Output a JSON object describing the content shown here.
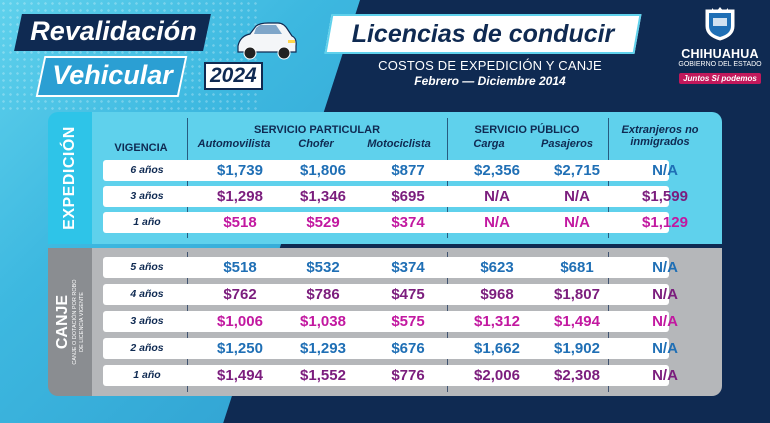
{
  "header": {
    "revalidacion": "Revalidación",
    "vehicular": "Vehicular",
    "year": "2024",
    "title": "Licencias de conducir",
    "subtitle": "COSTOS DE EXPEDICIÓN Y CANJE",
    "period": "Febrero — Diciembre 2014"
  },
  "logo": {
    "state": "CHIHUAHUA",
    "gobierno": "GOBIERNO DEL ESTADO",
    "slogan": "Juntos Sí podemos",
    "icon": "coat-of-arms-icon"
  },
  "colors": {
    "navy": "#0f2a52",
    "cyan": "#5fd1ec",
    "gray": "#b5b7ba",
    "blue_value": "#1f6fb5",
    "purple_value": "#7b1d7d",
    "pink_value": "#c218a0"
  },
  "table": {
    "groups": {
      "particular": "SERVICIO PARTICULAR",
      "publico": "SERVICIO PÚBLICO",
      "extranjeros": "Extranjeros no inmigrados"
    },
    "columns": {
      "vigencia": "VIGENCIA",
      "automovilista": "Automovilista",
      "chofer": "Chofer",
      "motociclista": "Motociclista",
      "carga": "Carga",
      "pasajeros": "Pasajeros"
    },
    "expedicion": {
      "label": "EXPEDICIÓN",
      "rows": [
        {
          "vigencia": "6 años",
          "auto": "$1,739",
          "chofer": "$1,806",
          "moto": "$877",
          "carga": "$2,356",
          "pasajeros": "$2,715",
          "ext": "N/A"
        },
        {
          "vigencia": "3 años",
          "auto": "$1,298",
          "chofer": "$1,346",
          "moto": "$695",
          "carga": "N/A",
          "pasajeros": "N/A",
          "ext": "$1,599"
        },
        {
          "vigencia": "1 año",
          "auto": "$518",
          "chofer": "$529",
          "moto": "$374",
          "carga": "N/A",
          "pasajeros": "N/A",
          "ext": "$1,129"
        }
      ]
    },
    "canje": {
      "label": "CANJE",
      "sublabel1": "CANJE O DOTACIÓN POR ROBO",
      "sublabel2": "DE LICENCIA VIGENTE",
      "rows": [
        {
          "vigencia": "5 años",
          "auto": "$518",
          "chofer": "$532",
          "moto": "$374",
          "carga": "$623",
          "pasajeros": "$681",
          "ext": "N/A"
        },
        {
          "vigencia": "4 años",
          "auto": "$762",
          "chofer": "$786",
          "moto": "$475",
          "carga": "$968",
          "pasajeros": "$1,807",
          "ext": "N/A"
        },
        {
          "vigencia": "3 años",
          "auto": "$1,006",
          "chofer": "$1,038",
          "moto": "$575",
          "carga": "$1,312",
          "pasajeros": "$1,494",
          "ext": "N/A"
        },
        {
          "vigencia": "2 años",
          "auto": "$1,250",
          "chofer": "$1,293",
          "moto": "$676",
          "carga": "$1,662",
          "pasajeros": "$1,902",
          "ext": "N/A"
        },
        {
          "vigencia": "1 año",
          "auto": "$1,494",
          "chofer": "$1,552",
          "moto": "$776",
          "carga": "$2,006",
          "pasajeros": "$2,308",
          "ext": "N/A"
        }
      ]
    }
  }
}
